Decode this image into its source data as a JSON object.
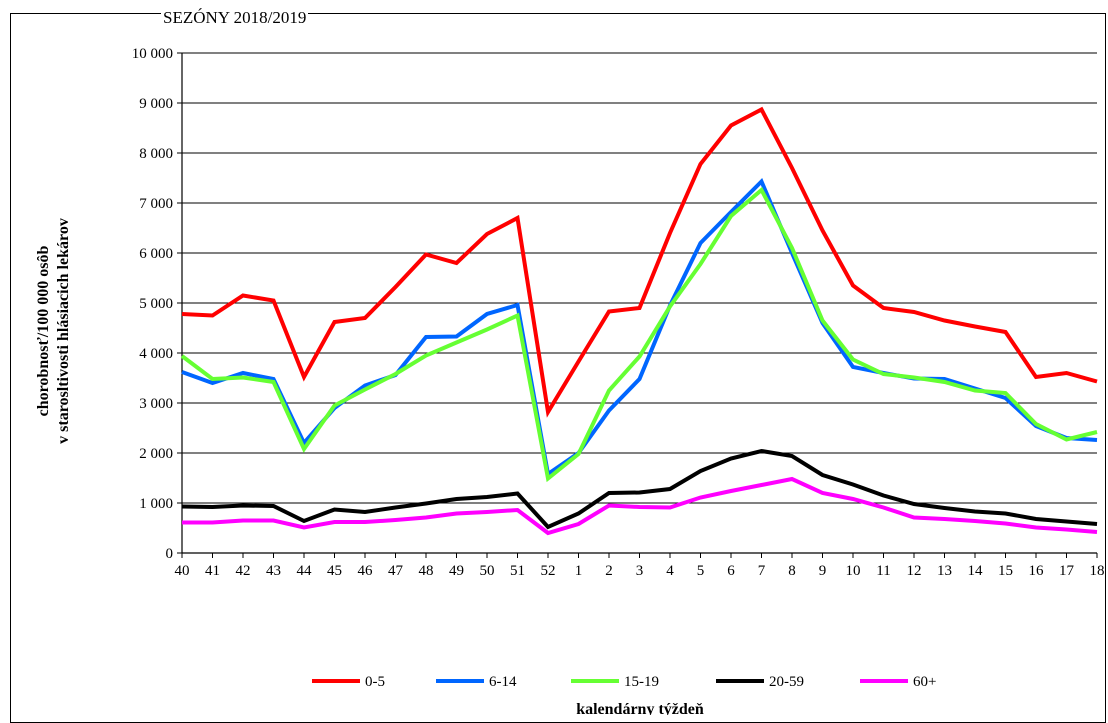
{
  "page": {
    "title": "SEZÓNY 2018/2019"
  },
  "chart_data": {
    "type": "line",
    "title": "",
    "xlabel": "kalendárny týždeň",
    "ylabel_line1": "chorobnosť/100 000 osôb",
    "ylabel_line2": "v starosltivosti hlásiacich lekárov",
    "ylim": [
      0,
      10000
    ],
    "yticks": [
      0,
      1000,
      2000,
      3000,
      4000,
      5000,
      6000,
      7000,
      8000,
      9000,
      10000
    ],
    "ytick_labels": [
      "0",
      "1 000",
      "2 000",
      "3 000",
      "4 000",
      "5 000",
      "6 000",
      "7 000",
      "8 000",
      "9 000",
      "10 000"
    ],
    "grid": "horizontal",
    "legend_position": "bottom",
    "categories": [
      "40",
      "41",
      "42",
      "43",
      "44",
      "45",
      "46",
      "47",
      "48",
      "49",
      "50",
      "51",
      "52",
      "1",
      "2",
      "3",
      "4",
      "5",
      "6",
      "7",
      "8",
      "9",
      "10",
      "11",
      "12",
      "13",
      "14",
      "15",
      "16",
      "17",
      "18"
    ],
    "series": [
      {
        "name": "0-5",
        "color": "#ff0000",
        "values": [
          4780,
          4750,
          5150,
          5050,
          3520,
          4620,
          4700,
          5320,
          5970,
          5800,
          6380,
          6700,
          2820,
          3830,
          4830,
          4900,
          6400,
          7780,
          8550,
          8870,
          7700,
          6450,
          5350,
          4900,
          4820,
          4650,
          4530,
          4420,
          3520,
          3600,
          3430
        ]
      },
      {
        "name": "6-14",
        "color": "#0066ff",
        "values": [
          3620,
          3400,
          3600,
          3480,
          2200,
          2900,
          3350,
          3560,
          4320,
          4330,
          4780,
          4960,
          1580,
          2000,
          2850,
          3480,
          4950,
          6200,
          6820,
          7430,
          6000,
          4600,
          3720,
          3600,
          3490,
          3480,
          3290,
          3100,
          2540,
          2300,
          2260
        ]
      },
      {
        "name": "15-19",
        "color": "#66ff33",
        "values": [
          3940,
          3480,
          3510,
          3420,
          2080,
          2950,
          3270,
          3580,
          3950,
          4210,
          4470,
          4750,
          1490,
          1980,
          3250,
          3930,
          4930,
          5780,
          6740,
          7260,
          6100,
          4650,
          3870,
          3580,
          3510,
          3420,
          3250,
          3200,
          2580,
          2270,
          2420
        ]
      },
      {
        "name": "20-59",
        "color": "#000000",
        "values": [
          930,
          920,
          950,
          940,
          640,
          870,
          820,
          910,
          990,
          1080,
          1120,
          1190,
          520,
          790,
          1200,
          1210,
          1280,
          1640,
          1890,
          2040,
          1940,
          1560,
          1370,
          1150,
          980,
          900,
          830,
          790,
          680,
          630,
          580
        ]
      },
      {
        "name": "60+",
        "color": "#ff00ff",
        "values": [
          610,
          610,
          650,
          650,
          510,
          620,
          620,
          660,
          710,
          790,
          820,
          860,
          400,
          580,
          950,
          920,
          910,
          1110,
          1240,
          1360,
          1480,
          1200,
          1080,
          910,
          710,
          680,
          640,
          590,
          510,
          470,
          420
        ]
      }
    ]
  }
}
